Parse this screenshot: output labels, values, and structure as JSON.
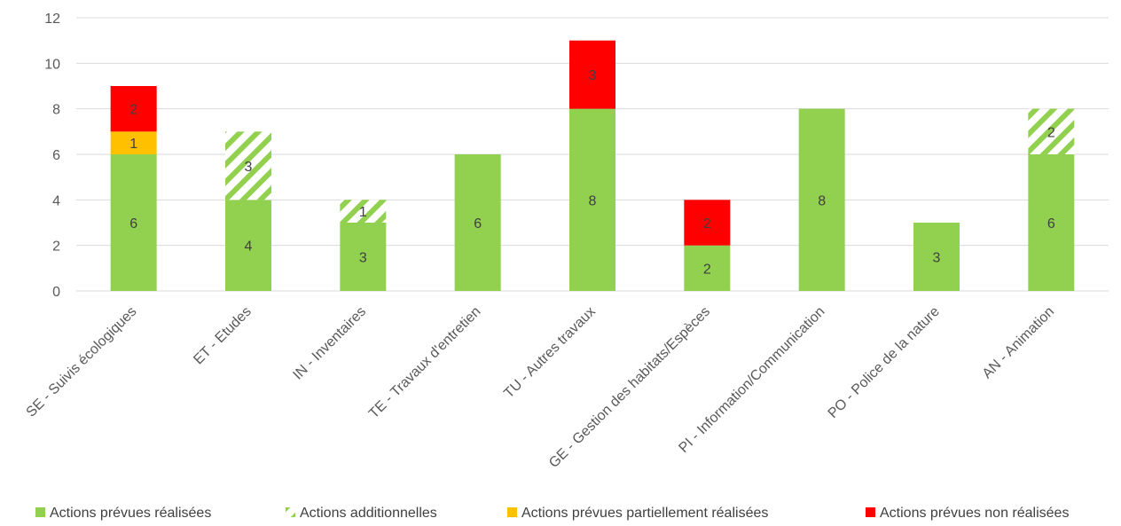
{
  "chart_data": {
    "type": "bar",
    "stacked": true,
    "title": "",
    "xlabel": "",
    "ylabel": "",
    "ylim": [
      0,
      12
    ],
    "yticks": [
      0,
      2,
      4,
      6,
      8,
      10,
      12
    ],
    "grid": true,
    "legend_position": "bottom",
    "categories": [
      "SE - Suivis écologiques",
      "ET - Etudes",
      "IN - Inventaires",
      "TE - Travaux d'entretien",
      "TU - Autres travaux",
      "GE - Gestion des habitats/Espèces",
      "PI - Information/Communication",
      "PO - Police de la nature",
      "AN - Animation"
    ],
    "series": [
      {
        "name": "Actions prévues réalisées",
        "color": "#92D050",
        "pattern": "solid",
        "values": [
          6,
          4,
          3,
          6,
          8,
          2,
          8,
          3,
          6
        ]
      },
      {
        "name": "Actions additionnelles",
        "color": "#92D050",
        "pattern": "hatch",
        "values": [
          0,
          3,
          1,
          0,
          0,
          0,
          0,
          0,
          2
        ]
      },
      {
        "name": "Actions prévues partiellement réalisées",
        "color": "#FFC000",
        "pattern": "solid",
        "values": [
          1,
          0,
          0,
          0,
          0,
          0,
          0,
          0,
          0
        ]
      },
      {
        "name": "Actions prévues non réalisées",
        "color": "#FF0000",
        "pattern": "solid",
        "values": [
          2,
          0,
          0,
          0,
          3,
          2,
          0,
          0,
          0
        ]
      }
    ]
  }
}
